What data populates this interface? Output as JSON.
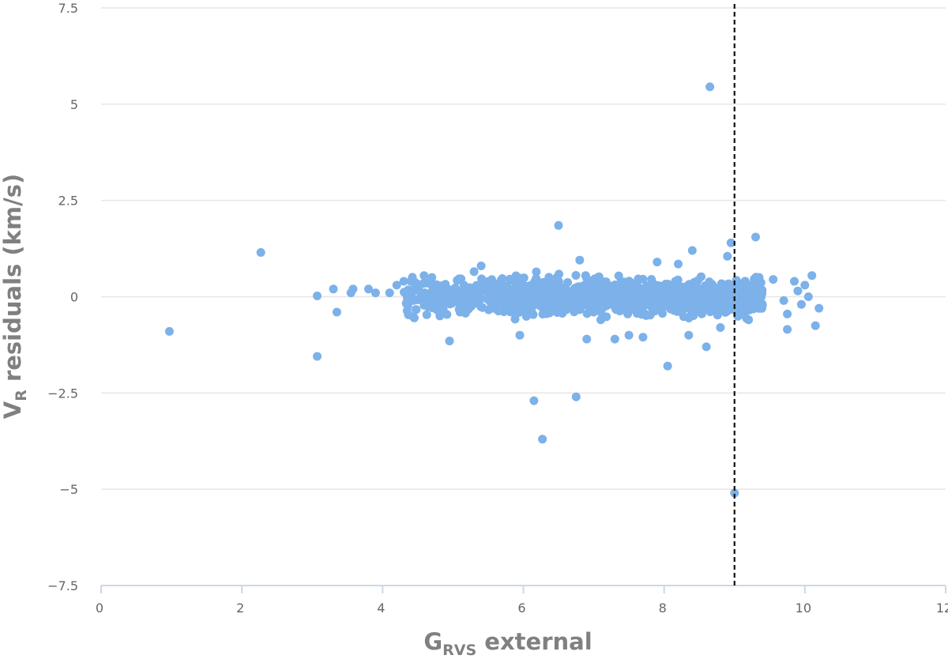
{
  "chart_data": {
    "type": "scatter",
    "xlabel": {
      "main": "G",
      "subscript": "RVS",
      "suffix": " external"
    },
    "ylabel": {
      "main": "V",
      "subscript": "R",
      "suffix": " residuals (km/s)"
    },
    "xlim": [
      0,
      12
    ],
    "ylim": [
      -7.5,
      7.5
    ],
    "x_ticks": [
      0,
      2,
      4,
      6,
      8,
      10,
      12
    ],
    "y_ticks": [
      -7.5,
      -5,
      -2.5,
      0,
      2.5,
      5,
      7.5
    ],
    "x_tick_labels": [
      "0",
      "2",
      "4",
      "6",
      "8",
      "10",
      "12"
    ],
    "y_tick_labels": [
      "−7.5",
      "−5",
      "−2.5",
      "0",
      "2.5",
      "5",
      "7.5"
    ],
    "grid": "horizontal",
    "reference_line": {
      "x": 9.0,
      "style": "dashed",
      "color": "#111111"
    },
    "marker_color": "#7cb1ea",
    "series": [
      {
        "points": [
          [
            0.97,
            -0.9
          ],
          [
            2.27,
            1.15
          ],
          [
            3.07,
            0.02
          ],
          [
            3.07,
            -1.55
          ],
          [
            3.3,
            0.2
          ],
          [
            3.35,
            -0.4
          ],
          [
            3.55,
            0.1
          ],
          [
            3.58,
            0.2
          ],
          [
            3.8,
            0.2
          ],
          [
            3.9,
            0.1
          ],
          [
            4.1,
            0.1
          ],
          [
            4.2,
            0.3
          ],
          [
            4.3,
            0.4
          ],
          [
            4.35,
            0.0
          ],
          [
            4.45,
            -0.55
          ],
          [
            4.5,
            0.2
          ],
          [
            4.6,
            0.1
          ],
          [
            4.7,
            0.5
          ],
          [
            4.95,
            -1.15
          ],
          [
            5.1,
            -0.4
          ],
          [
            5.3,
            0.65
          ],
          [
            5.4,
            0.8
          ],
          [
            5.95,
            -1.0
          ],
          [
            6.15,
            -2.7
          ],
          [
            6.27,
            -3.7
          ],
          [
            6.5,
            1.85
          ],
          [
            6.75,
            -2.6
          ],
          [
            6.8,
            0.95
          ],
          [
            6.9,
            -1.1
          ],
          [
            7.1,
            -0.6
          ],
          [
            7.3,
            -1.1
          ],
          [
            7.5,
            -1.0
          ],
          [
            7.7,
            -1.05
          ],
          [
            7.9,
            0.9
          ],
          [
            8.05,
            -1.8
          ],
          [
            8.2,
            0.85
          ],
          [
            8.35,
            -1.0
          ],
          [
            8.4,
            1.2
          ],
          [
            8.6,
            -1.3
          ],
          [
            8.65,
            5.45
          ],
          [
            8.8,
            -0.8
          ],
          [
            8.9,
            1.05
          ],
          [
            8.95,
            1.4
          ],
          [
            9.0,
            -5.1
          ],
          [
            9.05,
            0.3
          ],
          [
            9.2,
            -0.6
          ],
          [
            9.3,
            1.55
          ],
          [
            9.35,
            0.5
          ],
          [
            9.55,
            0.45
          ],
          [
            9.7,
            -0.1
          ],
          [
            9.75,
            -0.45
          ],
          [
            9.75,
            -0.85
          ],
          [
            9.85,
            0.4
          ],
          [
            9.9,
            0.15
          ],
          [
            9.95,
            -0.2
          ],
          [
            10.0,
            0.3
          ],
          [
            10.05,
            0.0
          ],
          [
            10.1,
            0.55
          ],
          [
            10.15,
            -0.75
          ],
          [
            10.2,
            -0.3
          ]
        ],
        "dense_cluster": {
          "x_range": [
            4.3,
            9.4
          ],
          "center": 0.0,
          "spread": 0.22,
          "count": 1200
        }
      }
    ]
  }
}
